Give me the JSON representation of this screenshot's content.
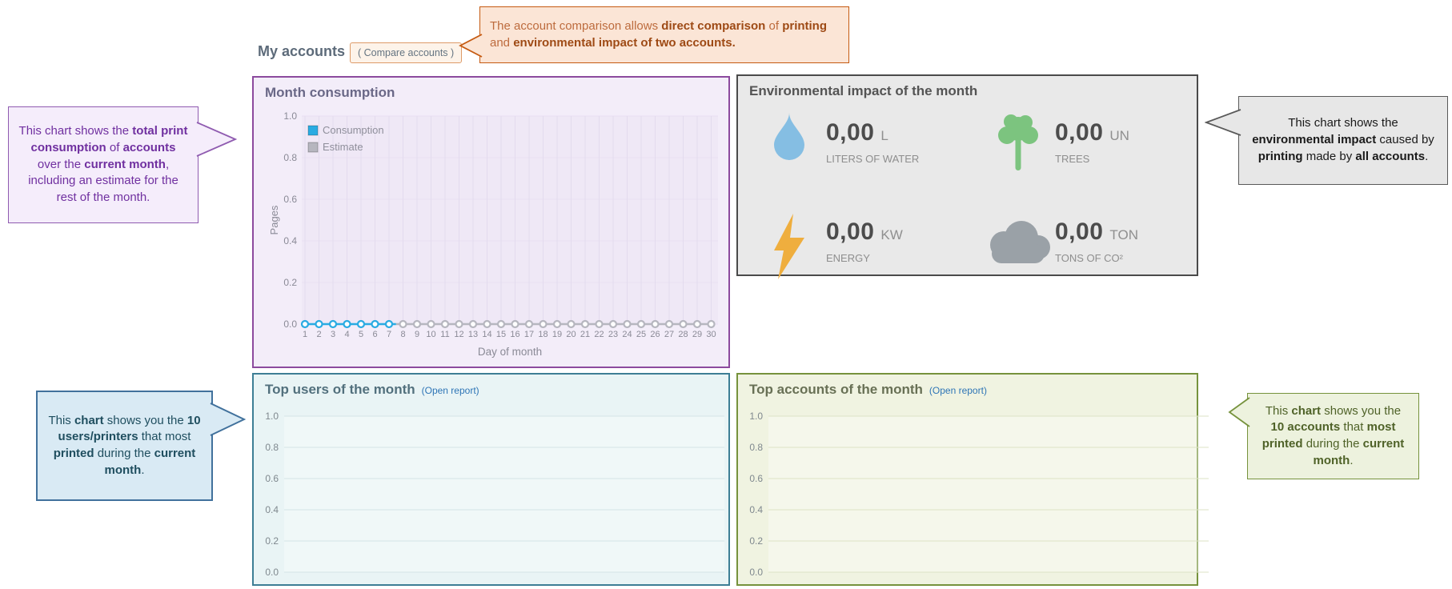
{
  "header": {
    "title": "My accounts",
    "compare_button_label": "( Compare accounts )"
  },
  "panels": {
    "month_consumption": {
      "title": "Month consumption"
    },
    "environmental": {
      "title": "Environmental impact of the month",
      "metrics": [
        {
          "icon": "water-drop",
          "icon_color": "#85bee3",
          "value": "0,00",
          "unit": "L",
          "label": "LITERS OF WATER"
        },
        {
          "icon": "tree",
          "icon_color": "#7cc47f",
          "value": "0,00",
          "unit": "UN",
          "label": "TREES"
        },
        {
          "icon": "lightning",
          "icon_color": "#efae3e",
          "value": "0,00",
          "unit": "KW",
          "label": "ENERGY"
        },
        {
          "icon": "cloud",
          "icon_color": "#9aa1a7",
          "value": "0,00",
          "unit": "TON",
          "label": "TONS OF CO²"
        }
      ]
    },
    "top_users": {
      "title": "Top users of the month",
      "link_label": "(Open report)"
    },
    "top_accounts": {
      "title": "Top accounts of the month",
      "link_label": "(Open report)"
    }
  },
  "callouts": {
    "compare": {
      "segments": [
        {
          "t": "The account comparison allows ",
          "b": false
        },
        {
          "t": "direct comparison",
          "b": true
        },
        {
          "t": " of ",
          "b": false
        },
        {
          "t": "printing",
          "b": true
        },
        {
          "t": " and ",
          "b": false
        },
        {
          "t": "environmental impact of two accounts.",
          "b": true
        }
      ]
    },
    "month_consumption": {
      "segments": [
        {
          "t": "This chart shows the ",
          "b": false
        },
        {
          "t": "total print consumption",
          "b": true
        },
        {
          "t": " of ",
          "b": false
        },
        {
          "t": "accounts",
          "b": true
        },
        {
          "t": " over the ",
          "b": false
        },
        {
          "t": "current month",
          "b": true
        },
        {
          "t": ", including an estimate for the rest of the month.",
          "b": false
        }
      ]
    },
    "environmental": {
      "segments": [
        {
          "t": "This chart shows the ",
          "b": false
        },
        {
          "t": "environmental impact",
          "b": true
        },
        {
          "t": " caused by ",
          "b": false
        },
        {
          "t": "printing",
          "b": true
        },
        {
          "t": " made by ",
          "b": false
        },
        {
          "t": "all accounts",
          "b": true
        },
        {
          "t": ".",
          "b": false
        }
      ]
    },
    "top_users": {
      "segments": [
        {
          "t": "This ",
          "b": false
        },
        {
          "t": "chart",
          "b": true
        },
        {
          "t": " shows you the ",
          "b": false
        },
        {
          "t": "10 users/printers",
          "b": true
        },
        {
          "t": " that most ",
          "b": false
        },
        {
          "t": "printed",
          "b": true
        },
        {
          "t": " during the ",
          "b": false
        },
        {
          "t": "current month",
          "b": true
        },
        {
          "t": ".",
          "b": false
        }
      ]
    },
    "top_accounts": {
      "segments": [
        {
          "t": "This ",
          "b": false
        },
        {
          "t": "chart",
          "b": true
        },
        {
          "t": " shows you the ",
          "b": false
        },
        {
          "t": "10 accounts",
          "b": true
        },
        {
          "t": " that ",
          "b": false
        },
        {
          "t": "most printed",
          "b": true
        },
        {
          "t": " during the ",
          "b": false
        },
        {
          "t": "current month",
          "b": true
        },
        {
          "t": ".",
          "b": false
        }
      ]
    }
  },
  "chart_data": [
    {
      "type": "line",
      "title": "Month consumption",
      "xlabel": "Day of month",
      "ylabel": "Pages",
      "x": [
        1,
        2,
        3,
        4,
        5,
        6,
        7,
        8,
        9,
        10,
        11,
        12,
        13,
        14,
        15,
        16,
        17,
        18,
        19,
        20,
        21,
        22,
        23,
        24,
        25,
        26,
        27,
        28,
        29,
        30
      ],
      "yticks": [
        "1.0",
        "0.8",
        "0.6",
        "0.4",
        "0.2",
        "0.0"
      ],
      "ylim": [
        0,
        1
      ],
      "grid": true,
      "legend_position": "top-left",
      "series": [
        {
          "name": "Consumption",
          "color": "#29abe2",
          "x": [
            1,
            2,
            3,
            4,
            5,
            6,
            7
          ],
          "values": [
            0,
            0,
            0,
            0,
            0,
            0,
            0
          ]
        },
        {
          "name": "Estimate",
          "color": "#b6b6bf",
          "x": [
            8,
            9,
            10,
            11,
            12,
            13,
            14,
            15,
            16,
            17,
            18,
            19,
            20,
            21,
            22,
            23,
            24,
            25,
            26,
            27,
            28,
            29,
            30
          ],
          "values": [
            0,
            0,
            0,
            0,
            0,
            0,
            0,
            0,
            0,
            0,
            0,
            0,
            0,
            0,
            0,
            0,
            0,
            0,
            0,
            0,
            0,
            0,
            0
          ]
        }
      ],
      "plot_bg": "#efe8f6",
      "vgrid_color": "#e3dbee",
      "hgrid_color": "#e8e0f2",
      "axis_text_color": "#8a8a96",
      "legend_text_color": "#8f8f9b"
    },
    {
      "type": "bar",
      "title": "Top users of the month",
      "categories": [],
      "values": [],
      "yticks": [
        "1.0",
        "0.8",
        "0.6",
        "0.4",
        "0.2",
        "0.0"
      ],
      "ylim": [
        0,
        1
      ],
      "grid": true,
      "plot_bg": "rgba(255,255,255,0.35)",
      "grid_color": "#d5e5e6",
      "axis_text_color": "#7f888e"
    },
    {
      "type": "bar",
      "title": "Top accounts of the month",
      "categories": [],
      "values": [],
      "yticks": [
        "1.0",
        "0.8",
        "0.6",
        "0.4",
        "0.2",
        "0.0"
      ],
      "ylim": [
        0,
        1
      ],
      "grid": true,
      "plot_bg": "rgba(255,255,255,0.35)",
      "grid_color": "#dde3c6",
      "axis_text_color": "#7f888e"
    }
  ]
}
